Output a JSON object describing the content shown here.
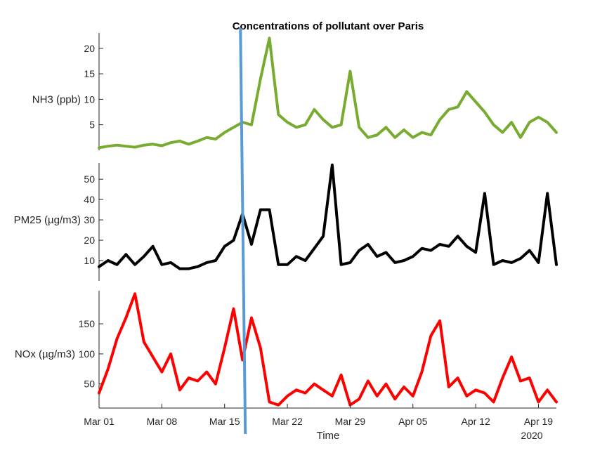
{
  "chart_data": {
    "type": "line",
    "title": "Concentrations of pollutant over Paris",
    "xlabel": "Time",
    "x_range": [
      "2020-03-01",
      "2020-04-21"
    ],
    "x_ticks": [
      "Mar 01",
      "Mar 08",
      "Mar 15",
      "Mar 22",
      "Mar 29",
      "Apr 05",
      "Apr 12",
      "Apr 19"
    ],
    "x_tick_dates": [
      "2020-03-01",
      "2020-03-08",
      "2020-03-15",
      "2020-03-22",
      "2020-03-29",
      "2020-04-05",
      "2020-04-12",
      "2020-04-19"
    ],
    "x_secondary_label": "2020",
    "vertical_marker": {
      "date": "2020-03-17",
      "color": "#5b9bd5"
    },
    "grid": false,
    "panels": [
      {
        "ylabel": "NH3 (ppb)",
        "ylim": [
          0,
          23
        ],
        "yticks": [
          5,
          10,
          15,
          20
        ],
        "color": "#77ac30",
        "x": [
          "2020-03-01",
          "2020-03-02",
          "2020-03-03",
          "2020-03-04",
          "2020-03-05",
          "2020-03-06",
          "2020-03-07",
          "2020-03-08",
          "2020-03-09",
          "2020-03-10",
          "2020-03-11",
          "2020-03-12",
          "2020-03-13",
          "2020-03-14",
          "2020-03-15",
          "2020-03-16",
          "2020-03-17",
          "2020-03-18",
          "2020-03-19",
          "2020-03-20",
          "2020-03-21",
          "2020-03-22",
          "2020-03-23",
          "2020-03-24",
          "2020-03-25",
          "2020-03-26",
          "2020-03-27",
          "2020-03-28",
          "2020-03-29",
          "2020-03-30",
          "2020-03-31",
          "2020-04-01",
          "2020-04-02",
          "2020-04-03",
          "2020-04-04",
          "2020-04-05",
          "2020-04-06",
          "2020-04-07",
          "2020-04-08",
          "2020-04-09",
          "2020-04-10",
          "2020-04-11",
          "2020-04-12",
          "2020-04-13",
          "2020-04-14",
          "2020-04-15",
          "2020-04-16",
          "2020-04-17",
          "2020-04-18",
          "2020-04-19",
          "2020-04-20",
          "2020-04-21"
        ],
        "values": [
          0.5,
          0.8,
          1.0,
          0.8,
          0.6,
          1.0,
          1.2,
          0.9,
          1.5,
          1.8,
          1.2,
          1.8,
          2.5,
          2.2,
          3.5,
          4.5,
          5.5,
          5.0,
          14.0,
          22.0,
          7.0,
          5.5,
          4.5,
          5.0,
          8.0,
          6.0,
          4.5,
          5.0,
          15.5,
          4.5,
          2.5,
          3.0,
          4.5,
          2.5,
          4.0,
          2.5,
          3.5,
          3.0,
          6.0,
          8.0,
          8.5,
          11.5,
          9.5,
          7.5,
          5.0,
          3.5,
          5.5,
          2.5,
          5.5,
          6.5,
          5.5,
          3.5
        ]
      },
      {
        "ylabel": "PM25 (µg/m3)",
        "ylim": [
          0,
          58
        ],
        "yticks": [
          10,
          20,
          30,
          40,
          50
        ],
        "color": "#000000",
        "x": [
          "2020-03-01",
          "2020-03-02",
          "2020-03-03",
          "2020-03-04",
          "2020-03-05",
          "2020-03-06",
          "2020-03-07",
          "2020-03-08",
          "2020-03-09",
          "2020-03-10",
          "2020-03-11",
          "2020-03-12",
          "2020-03-13",
          "2020-03-14",
          "2020-03-15",
          "2020-03-16",
          "2020-03-17",
          "2020-03-18",
          "2020-03-19",
          "2020-03-20",
          "2020-03-21",
          "2020-03-22",
          "2020-03-23",
          "2020-03-24",
          "2020-03-25",
          "2020-03-26",
          "2020-03-27",
          "2020-03-28",
          "2020-03-29",
          "2020-03-30",
          "2020-03-31",
          "2020-04-01",
          "2020-04-02",
          "2020-04-03",
          "2020-04-04",
          "2020-04-05",
          "2020-04-06",
          "2020-04-07",
          "2020-04-08",
          "2020-04-09",
          "2020-04-10",
          "2020-04-11",
          "2020-04-12",
          "2020-04-13",
          "2020-04-14",
          "2020-04-15",
          "2020-04-16",
          "2020-04-17",
          "2020-04-18",
          "2020-04-19",
          "2020-04-20",
          "2020-04-21"
        ],
        "values": [
          7,
          10,
          8,
          13,
          8,
          12,
          17,
          8,
          9,
          6,
          6,
          7,
          9,
          10,
          17,
          20,
          33,
          18,
          35,
          35,
          8,
          8,
          12,
          10,
          16,
          22,
          57,
          8,
          9,
          15,
          18,
          12,
          14,
          9,
          10,
          12,
          16,
          15,
          18,
          17,
          22,
          17,
          14,
          43,
          8,
          10,
          9,
          11,
          15,
          9,
          43,
          8
        ]
      },
      {
        "ylabel": "NOx (µg/m3)",
        "ylim": [
          10,
          205
        ],
        "yticks": [
          50,
          100,
          150
        ],
        "color": "#ff0000",
        "x": [
          "2020-03-01",
          "2020-03-02",
          "2020-03-03",
          "2020-03-04",
          "2020-03-05",
          "2020-03-06",
          "2020-03-07",
          "2020-03-08",
          "2020-03-09",
          "2020-03-10",
          "2020-03-11",
          "2020-03-12",
          "2020-03-13",
          "2020-03-14",
          "2020-03-15",
          "2020-03-16",
          "2020-03-17",
          "2020-03-18",
          "2020-03-19",
          "2020-03-20",
          "2020-03-21",
          "2020-03-22",
          "2020-03-23",
          "2020-03-24",
          "2020-03-25",
          "2020-03-26",
          "2020-03-27",
          "2020-03-28",
          "2020-03-29",
          "2020-03-30",
          "2020-03-31",
          "2020-04-01",
          "2020-04-02",
          "2020-04-03",
          "2020-04-04",
          "2020-04-05",
          "2020-04-06",
          "2020-04-07",
          "2020-04-08",
          "2020-04-09",
          "2020-04-10",
          "2020-04-11",
          "2020-04-12",
          "2020-04-13",
          "2020-04-14",
          "2020-04-15",
          "2020-04-16",
          "2020-04-17",
          "2020-04-18",
          "2020-04-19",
          "2020-04-20",
          "2020-04-21"
        ],
        "values": [
          35,
          75,
          125,
          160,
          200,
          120,
          95,
          70,
          100,
          40,
          60,
          55,
          70,
          50,
          110,
          175,
          90,
          160,
          110,
          20,
          15,
          30,
          40,
          35,
          50,
          40,
          30,
          65,
          15,
          25,
          55,
          30,
          50,
          25,
          45,
          30,
          70,
          130,
          155,
          45,
          60,
          30,
          40,
          35,
          20,
          60,
          95,
          55,
          60,
          20,
          40,
          20
        ]
      }
    ]
  }
}
